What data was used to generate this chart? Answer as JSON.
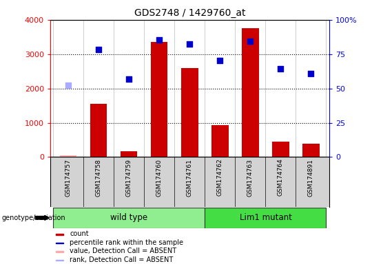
{
  "title": "GDS2748 / 1429760_at",
  "samples": [
    "GSM174757",
    "GSM174758",
    "GSM174759",
    "GSM174760",
    "GSM174761",
    "GSM174762",
    "GSM174763",
    "GSM174764",
    "GSM174891"
  ],
  "counts": [
    50,
    1550,
    175,
    3350,
    2600,
    940,
    3750,
    450,
    400
  ],
  "percentile_ranks": [
    2090,
    3130,
    2280,
    3410,
    3290,
    2820,
    3370,
    2570,
    2430
  ],
  "absent_samples": [
    0
  ],
  "wild_type_indices": [
    0,
    1,
    2,
    3,
    4
  ],
  "lim1_mutant_indices": [
    5,
    6,
    7,
    8
  ],
  "bar_color": "#cc0000",
  "absent_bar_color": "#ffaaaa",
  "rank_color": "#0000cc",
  "absent_rank_color": "#aaaaff",
  "ylim_left": [
    0,
    4000
  ],
  "ylim_right": [
    0,
    100
  ],
  "left_ticks": [
    0,
    1000,
    2000,
    3000,
    4000
  ],
  "right_ticks": [
    0,
    25,
    50,
    75,
    100
  ],
  "right_tick_labels": [
    "0",
    "25",
    "50",
    "75",
    "100%"
  ],
  "grid_values": [
    1000,
    2000,
    3000
  ],
  "wild_type_label": "wild type",
  "lim1_mutant_label": "Lim1 mutant",
  "genotype_label": "genotype/variation",
  "genotype_box_color": "#90ee90",
  "xlabels_bg": "#d3d3d3",
  "legend_items": [
    {
      "label": "count",
      "color": "#cc0000"
    },
    {
      "label": "percentile rank within the sample",
      "color": "#0000cc"
    },
    {
      "label": "value, Detection Call = ABSENT",
      "color": "#ffaaaa"
    },
    {
      "label": "rank, Detection Call = ABSENT",
      "color": "#aaaaff"
    }
  ],
  "bar_width": 0.55
}
